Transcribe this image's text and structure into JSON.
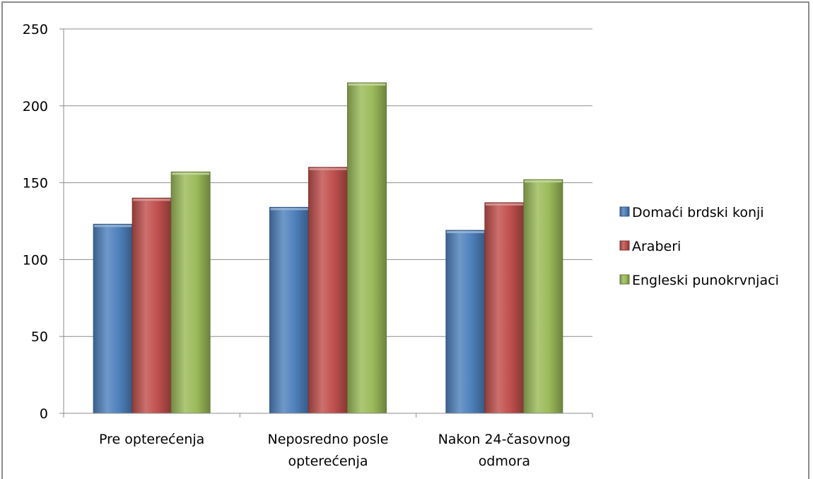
{
  "chart_data": {
    "type": "bar",
    "title": "",
    "xlabel": "",
    "ylabel": "",
    "categories": [
      [
        "Pre opterećenja"
      ],
      [
        "Neposredno posle",
        "opterećenja"
      ],
      [
        "Nakon 24-časovnog",
        "odmora"
      ]
    ],
    "series": [
      {
        "name": "Domaći brdski konji",
        "color": "#4f81bd",
        "values": [
          123,
          134,
          119
        ]
      },
      {
        "name": "Araberi",
        "color": "#c0504d",
        "values": [
          140,
          160,
          137
        ]
      },
      {
        "name": "Engleski punokrvnjaci",
        "color": "#9bbb59",
        "values": [
          157,
          215,
          152
        ]
      }
    ],
    "ylim": [
      0,
      250
    ],
    "yticks": [
      0,
      50,
      100,
      150,
      200,
      250
    ],
    "grid": true,
    "legend_position": "right"
  }
}
